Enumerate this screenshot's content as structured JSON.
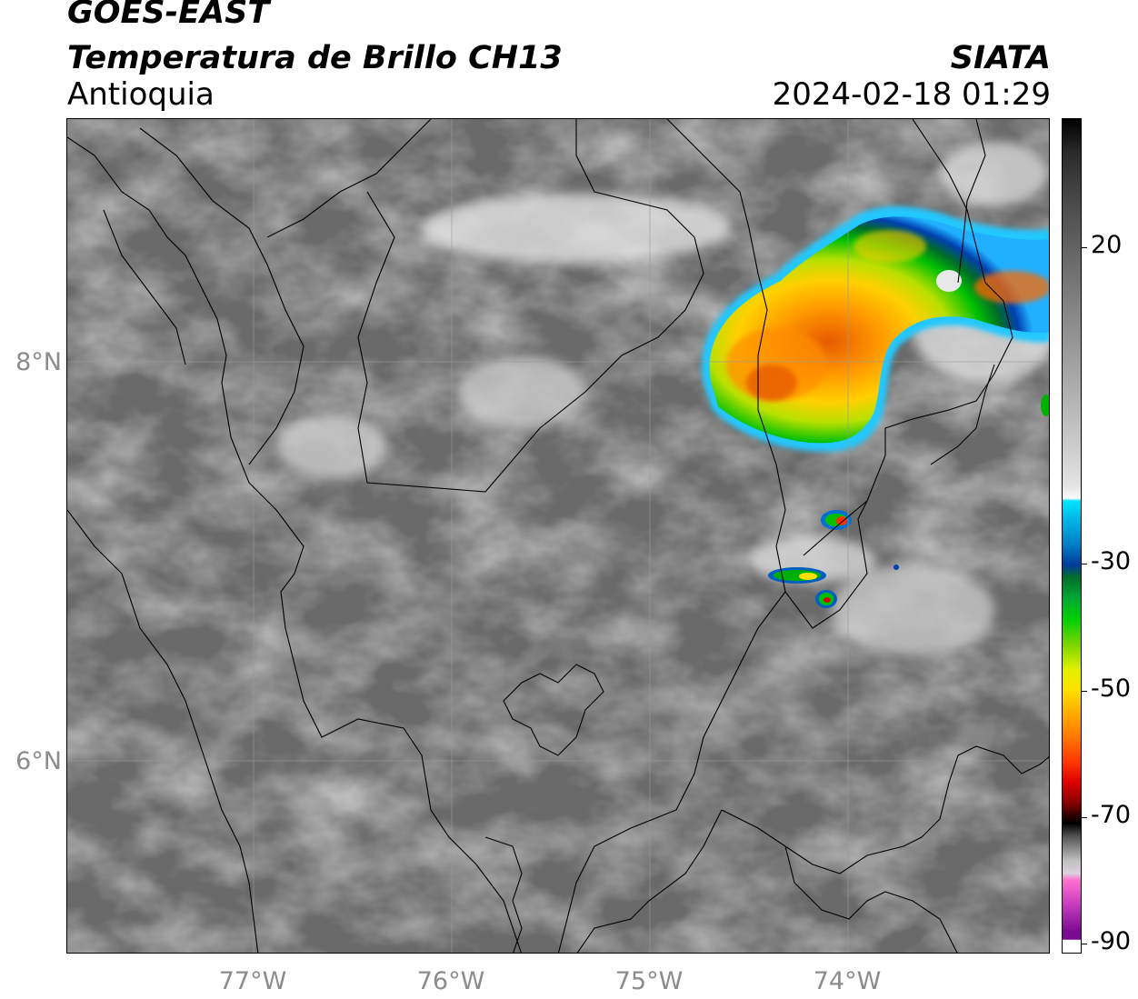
{
  "header": {
    "satellite": "GOES-EAST",
    "product": "Temperatura de Brillo CH13",
    "region": "Antioquia",
    "agency": "SIATA",
    "datetime": "2024-02-18 01:29"
  },
  "map": {
    "latitude_labels": [
      "8°N",
      "6°N"
    ],
    "longitude_labels": [
      "77°W",
      "76°W",
      "75°W",
      "74°W"
    ],
    "grid": true,
    "basemap": "grayscale infrared brightness temperature with coloured cold cloud tops",
    "colors": {
      "warm_background": "#6e6e6e",
      "cold_core": "#ff7a00",
      "green_band": "#00c000",
      "blue_edge": "#0040b0"
    }
  },
  "colorbar": {
    "labels": [
      "20",
      "-30",
      "-50",
      "-70",
      "-90"
    ]
  }
}
